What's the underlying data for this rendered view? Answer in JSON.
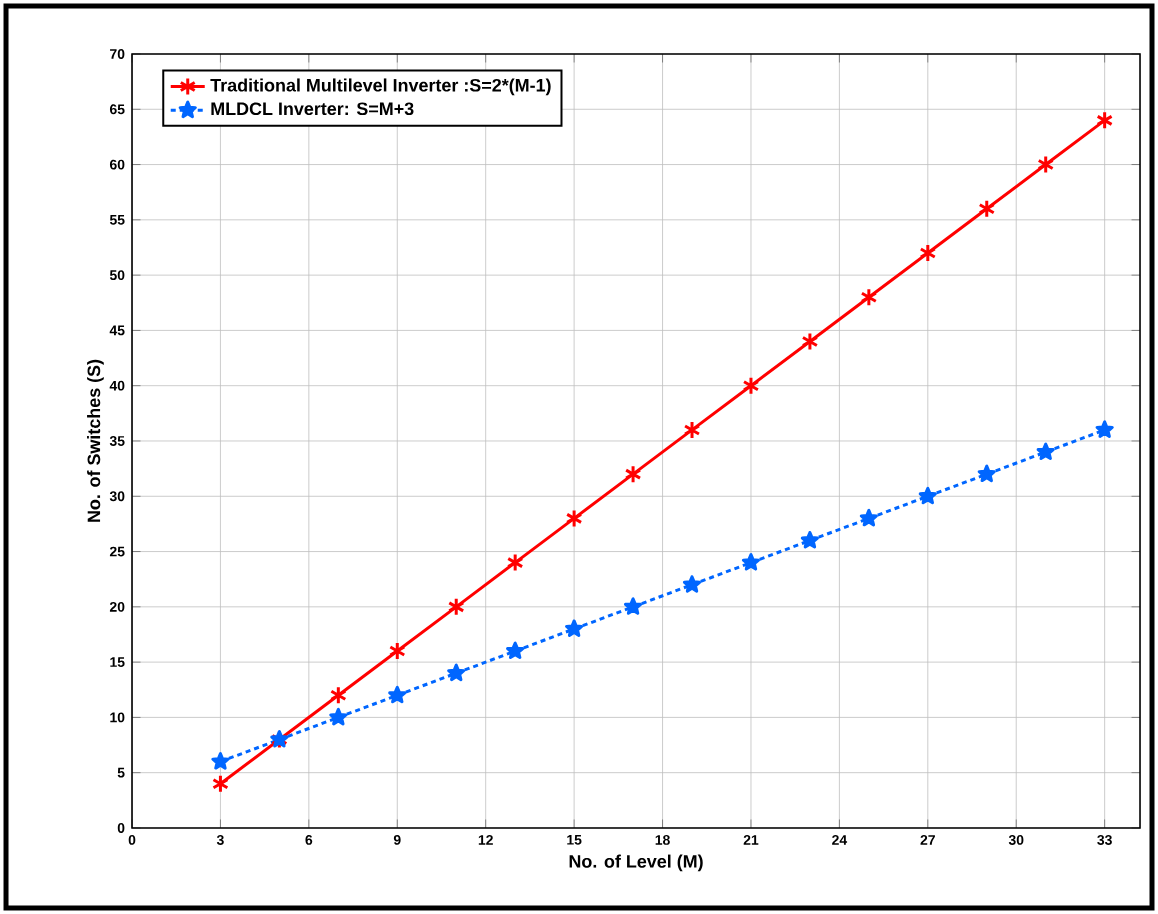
{
  "chart_data": {
    "type": "line",
    "xlabel": "No. of Level (M)",
    "ylabel": "No. of Switches  (S)",
    "x": [
      3,
      5,
      7,
      9,
      11,
      13,
      15,
      17,
      19,
      21,
      23,
      25,
      27,
      29,
      31,
      33
    ],
    "series": [
      {
        "name": "Traditional Multilevel Inverter :S=2*(M-1)",
        "color": "#ff0000",
        "marker": "cross",
        "line_style": "solid",
        "values": [
          4,
          8,
          12,
          16,
          20,
          24,
          28,
          32,
          36,
          40,
          44,
          48,
          52,
          56,
          60,
          64
        ]
      },
      {
        "name": "MLDCL Inverter: S=M+3",
        "color": "#0066ff",
        "marker": "star",
        "line_style": "dotted",
        "values": [
          6,
          8,
          10,
          12,
          14,
          16,
          18,
          20,
          22,
          24,
          26,
          28,
          30,
          32,
          34,
          36
        ]
      }
    ],
    "xlim": [
      0,
      34.2
    ],
    "ylim": [
      0,
      70
    ],
    "xticks": [
      0,
      3,
      6,
      9,
      12,
      15,
      18,
      21,
      24,
      27,
      30,
      33
    ],
    "yticks": [
      0,
      5,
      10,
      15,
      20,
      25,
      30,
      35,
      40,
      45,
      50,
      55,
      60,
      65,
      70
    ],
    "grid": true,
    "legend": "top left"
  }
}
